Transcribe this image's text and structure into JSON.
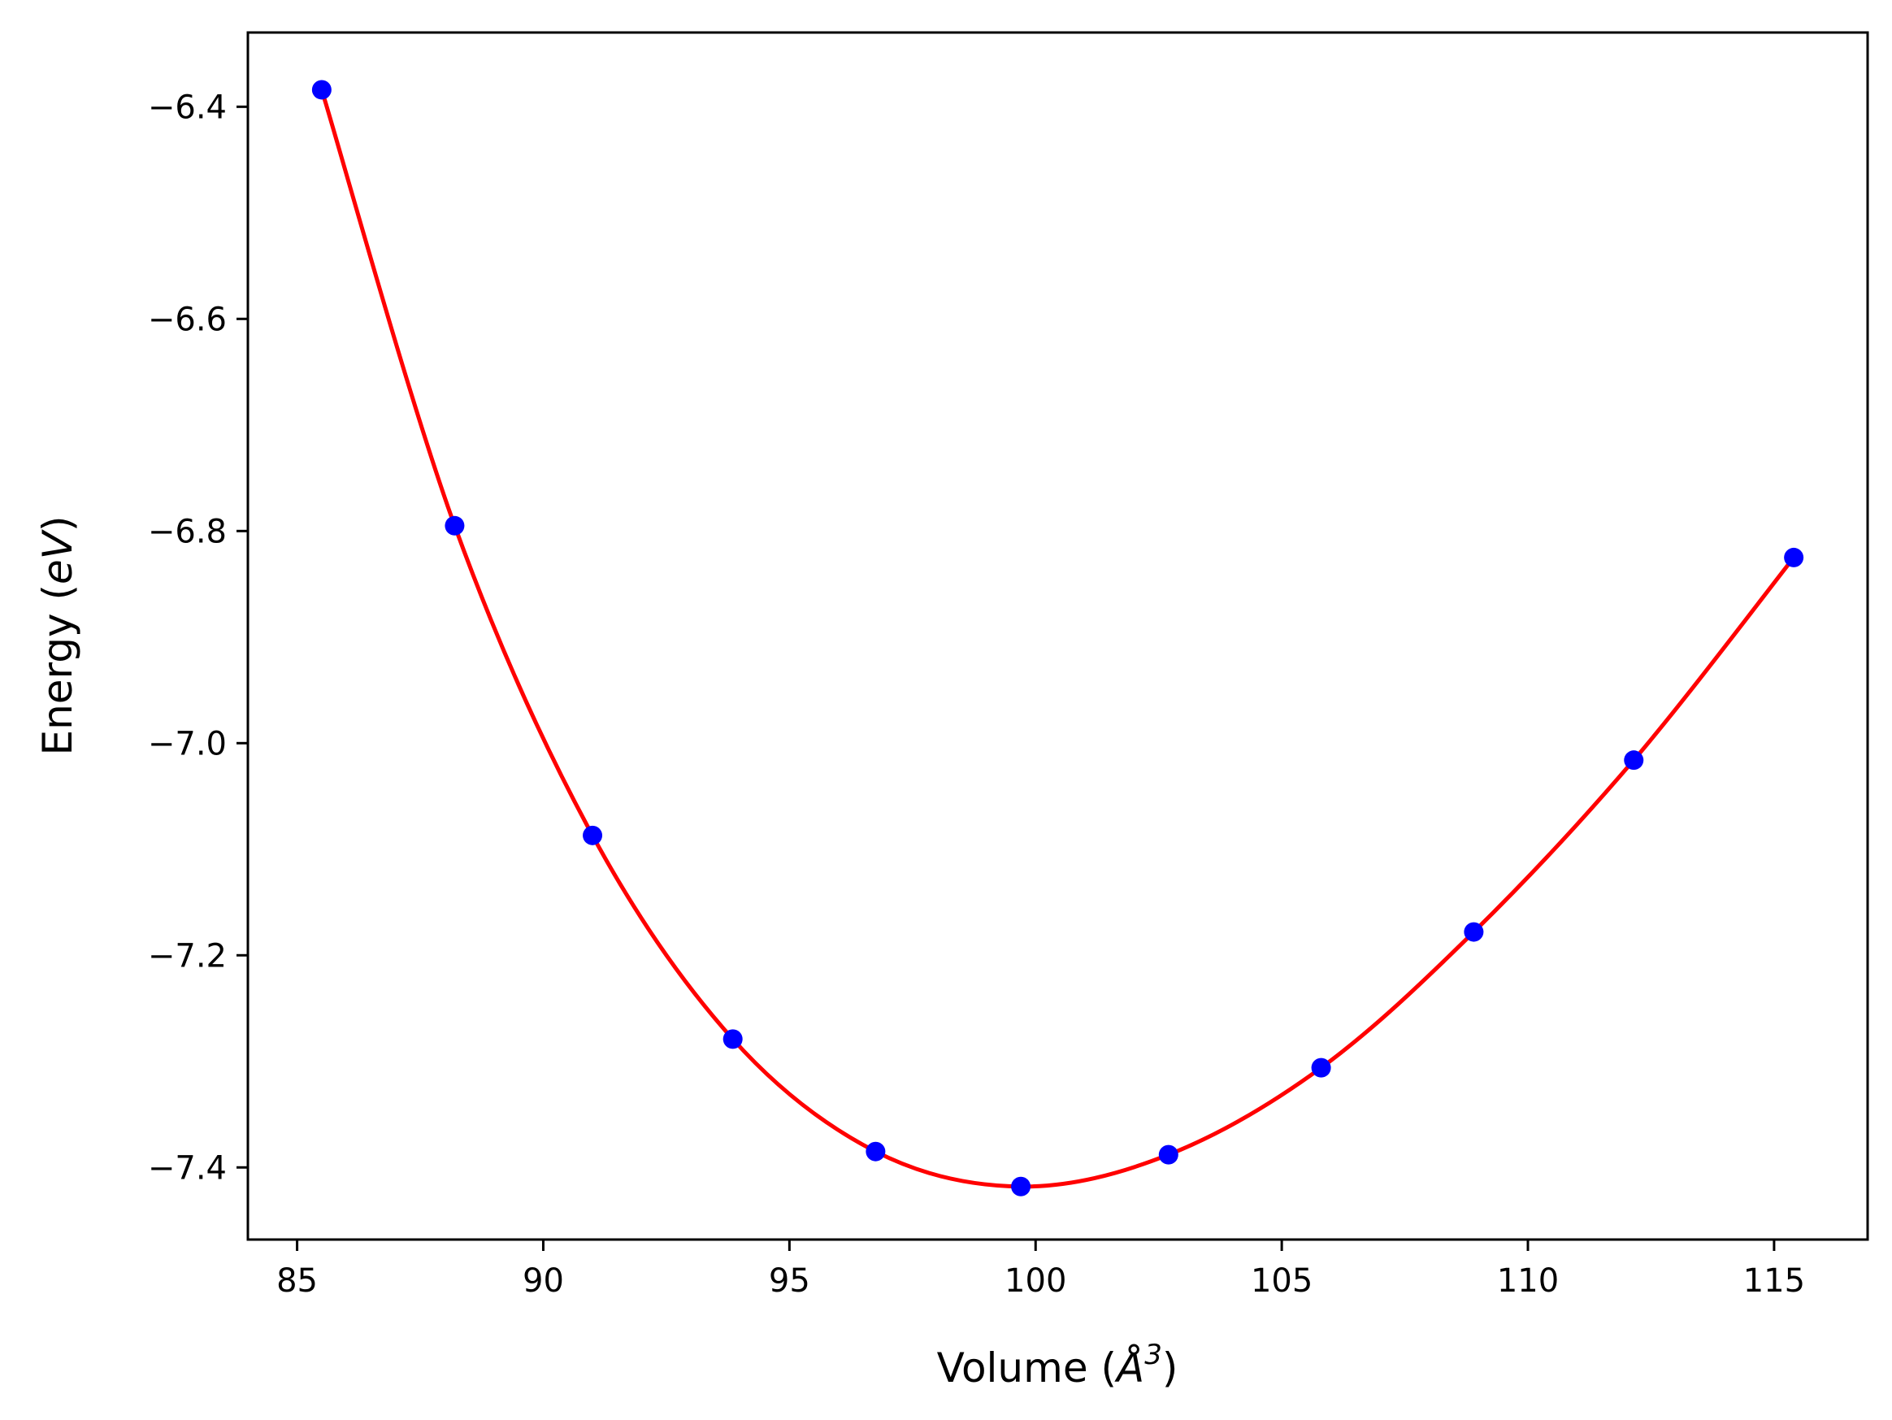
{
  "chart_data": {
    "type": "scatter",
    "xlabel": "Volume (",
    "xlabel_symbol": "Å",
    "xlabel_exp": "3",
    "xlabel_close": ")",
    "ylabel": "Energy (",
    "ylabel_unit": "eV",
    "ylabel_close": ")",
    "xlim": [
      84.0,
      116.9
    ],
    "ylim": [
      -7.468,
      -6.33
    ],
    "x_ticks": [
      85,
      90,
      95,
      100,
      105,
      110,
      115
    ],
    "x_tick_labels": [
      "85",
      "90",
      "95",
      "100",
      "105",
      "110",
      "115"
    ],
    "y_ticks": [
      -6.4,
      -6.6,
      -6.8,
      -7.0,
      -7.2,
      -7.4
    ],
    "y_tick_labels": [
      "−6.4",
      "−6.6",
      "−6.8",
      "−7.0",
      "−7.2",
      "−7.4"
    ],
    "grid": false,
    "series": [
      {
        "kind": "points",
        "color": "#0000ff",
        "x": [
          85.5,
          88.2,
          91.0,
          93.85,
          96.75,
          99.7,
          102.7,
          105.8,
          108.9,
          112.15,
          115.4
        ],
        "y": [
          -6.384,
          -6.795,
          -7.087,
          -7.279,
          -7.385,
          -7.418,
          -7.388,
          -7.306,
          -7.178,
          -7.016,
          -6.825
        ]
      },
      {
        "kind": "fit-line",
        "color": "#ff0000"
      }
    ]
  }
}
